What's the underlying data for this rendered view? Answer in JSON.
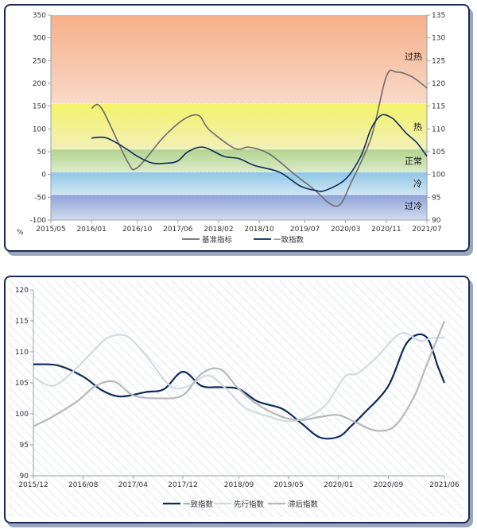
{
  "chart_data": [
    {
      "type": "line",
      "xlabel": "",
      "ylabel": "%",
      "x_ticks": [
        "2015/05",
        "2016/01",
        "2016/10",
        "2017/06",
        "2018/02",
        "2018/10",
        "2019/07",
        "2020/03",
        "2020/11",
        "2021/07"
      ],
      "x_tick_values": [
        0,
        8,
        17,
        25,
        33,
        41,
        50,
        58,
        66,
        74
      ],
      "ylim_left": [
        -100,
        350
      ],
      "y_ticks_left": [
        350,
        300,
        250,
        200,
        150,
        100,
        50,
        0,
        -50,
        -100
      ],
      "ylim_right": [
        90,
        135
      ],
      "y_ticks_right": [
        135,
        130,
        125,
        120,
        115,
        110,
        105,
        100,
        95,
        90
      ],
      "zones": [
        {
          "label": "过热",
          "from": 155,
          "to": 350,
          "color_top": "#f6b08a",
          "color_bottom": "#f8d9c8"
        },
        {
          "label": "热",
          "from": 55,
          "to": 155,
          "color_top": "#f3f36a",
          "color_bottom": "#f2f0b8"
        },
        {
          "label": "正常",
          "from": 5,
          "to": 55,
          "color_top": "#b2d38f",
          "color_bottom": "#dcebc8"
        },
        {
          "label": "冷",
          "from": -45,
          "to": 5,
          "color_top": "#8fc6e6",
          "color_bottom": "#d2e7f3"
        },
        {
          "label": "过冷",
          "from": -100,
          "to": -45,
          "color_top": "#8ea3d8",
          "color_bottom": "#d3dbef"
        }
      ],
      "series": [
        {
          "name": "基准指标",
          "axis": "left",
          "color": "#6b6b6b",
          "x": [
            8,
            10,
            15,
            17,
            22,
            26,
            29,
            31,
            35,
            37,
            39,
            43,
            48,
            52,
            55,
            57,
            59,
            63,
            66,
            68,
            71,
            74
          ],
          "y": [
            145,
            145,
            30,
            15,
            80,
            120,
            130,
            100,
            65,
            55,
            60,
            45,
            0,
            -35,
            -65,
            -65,
            -20,
            80,
            215,
            225,
            215,
            190
          ]
        },
        {
          "name": "一致指数",
          "axis": "right",
          "color": "#0c2a5c",
          "x": [
            8,
            11,
            15,
            17,
            20,
            23,
            25,
            27,
            30,
            34,
            37,
            40,
            45,
            49,
            52,
            54,
            58,
            61,
            63,
            65,
            67,
            68,
            70,
            72,
            74
          ],
          "y": [
            108,
            108,
            105.5,
            104,
            102.5,
            102.5,
            103,
            105,
            106,
            104,
            103.5,
            102,
            100.5,
            97.5,
            96.5,
            96.5,
            99,
            104,
            110,
            113,
            112.5,
            111.5,
            109,
            107,
            104
          ]
        }
      ]
    },
    {
      "type": "line",
      "xlabel": "",
      "ylabel": "",
      "x_ticks": [
        "2015/12",
        "2016/08",
        "2017/04",
        "2017/12",
        "2018/09",
        "2019/05",
        "2020/01",
        "2020/09",
        "2021/06"
      ],
      "x_tick_values": [
        0,
        8,
        16,
        24,
        33,
        41,
        49,
        57,
        66
      ],
      "ylim": [
        90,
        120
      ],
      "y_ticks": [
        120,
        115,
        110,
        105,
        100,
        95,
        90
      ],
      "series": [
        {
          "name": "一致指数",
          "color": "#0c2a5c",
          "x": [
            0,
            4,
            8,
            11,
            14,
            18,
            21,
            24,
            27,
            30,
            33,
            36,
            40,
            43,
            46,
            49,
            51,
            53,
            57,
            60,
            63,
            65,
            66
          ],
          "y": [
            108,
            107.8,
            106,
            103.8,
            102.8,
            103.5,
            104,
            106.8,
            104.5,
            104.3,
            104,
            102,
            100.8,
            98.5,
            96.2,
            96.3,
            98,
            100,
            104.5,
            111.5,
            112.5,
            107.5,
            105
          ]
        },
        {
          "name": "先行指数",
          "color": "#d4d9e3",
          "x": [
            0,
            3,
            6,
            9,
            12,
            15,
            18,
            22,
            25,
            28,
            31,
            34,
            38,
            41,
            44,
            47,
            50,
            52,
            55,
            59,
            62,
            64,
            66
          ],
          "y": [
            106,
            104.5,
            106.5,
            109.5,
            112.3,
            112.5,
            109.5,
            104.5,
            104.5,
            106.2,
            104,
            101,
            99.5,
            98.8,
            99.5,
            101.5,
            106,
            106.5,
            109,
            113,
            111.8,
            112.2,
            112.3
          ]
        },
        {
          "name": "滞后指数",
          "color": "#b8b8b8",
          "x": [
            0,
            3,
            7,
            10,
            13,
            16,
            20,
            24,
            27,
            30,
            33,
            36,
            40,
            43,
            46,
            49,
            52,
            55,
            58,
            61,
            63,
            66
          ],
          "y": [
            98,
            99.5,
            102,
            104.5,
            105.2,
            103,
            102.5,
            103,
            106.5,
            107.2,
            104,
            101.5,
            99.5,
            99,
            99.5,
            99.8,
            98.5,
            97.3,
            98,
            102.5,
            107.5,
            115
          ]
        }
      ]
    }
  ]
}
